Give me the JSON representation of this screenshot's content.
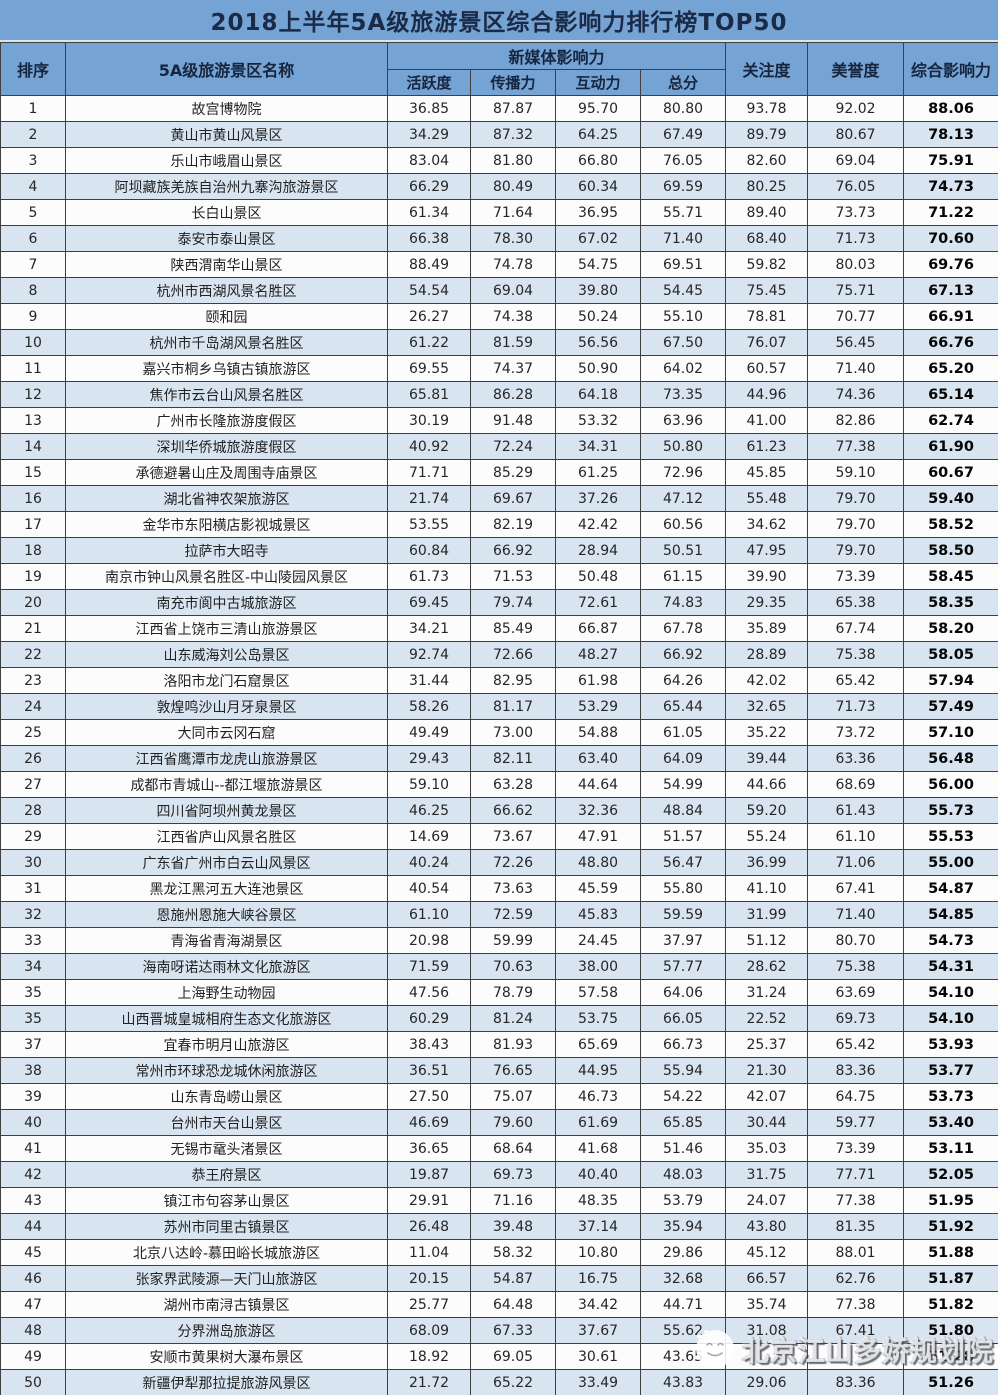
{
  "title": "2018上半年5A级旅游景区综合影响力排行榜TOP50",
  "header": {
    "rank": "排序",
    "name": "5A级旅游景区名称",
    "new_media": "新媒体影响力",
    "activity": "活跃度",
    "spread": "传播力",
    "interaction": "互动力",
    "subtotal": "总分",
    "attention": "关注度",
    "reputation": "美誉度",
    "overall": "综合影响力"
  },
  "colors": {
    "header_blue": "#75a3d3",
    "row_alt_blue": "#d9e4f1",
    "row_white": "#fcfcfd",
    "border_dark": "#3f3f3f"
  },
  "watermark": {
    "text": "北京江山多娇规划院"
  },
  "table": {
    "rows": [
      [
        "1",
        "故宫博物院",
        "36.85",
        "87.87",
        "95.70",
        "80.80",
        "93.78",
        "92.02",
        "88.06"
      ],
      [
        "2",
        "黄山市黄山风景区",
        "34.29",
        "87.32",
        "64.25",
        "67.49",
        "89.79",
        "80.67",
        "78.13"
      ],
      [
        "3",
        "乐山市峨眉山景区",
        "83.04",
        "81.80",
        "66.80",
        "76.05",
        "82.60",
        "69.04",
        "75.91"
      ],
      [
        "4",
        "阿坝藏族羌族自治州九寨沟旅游景区",
        "66.29",
        "80.49",
        "60.34",
        "69.59",
        "80.25",
        "76.05",
        "74.73"
      ],
      [
        "5",
        "长白山景区",
        "61.34",
        "71.64",
        "36.95",
        "55.71",
        "89.40",
        "73.73",
        "71.22"
      ],
      [
        "6",
        "泰安市泰山景区",
        "66.38",
        "78.30",
        "67.02",
        "71.40",
        "68.40",
        "71.73",
        "70.60"
      ],
      [
        "7",
        "陕西渭南华山景区",
        "88.49",
        "74.78",
        "54.75",
        "69.51",
        "59.82",
        "80.03",
        "69.76"
      ],
      [
        "8",
        "杭州市西湖风景名胜区",
        "54.54",
        "69.04",
        "39.80",
        "54.45",
        "75.45",
        "75.71",
        "67.13"
      ],
      [
        "9",
        "颐和园",
        "26.27",
        "74.38",
        "50.24",
        "55.10",
        "78.81",
        "70.77",
        "66.91"
      ],
      [
        "10",
        "杭州市千岛湖风景名胜区",
        "61.22",
        "81.59",
        "56.56",
        "67.50",
        "76.07",
        "56.45",
        "66.76"
      ],
      [
        "11",
        "嘉兴市桐乡乌镇古镇旅游区",
        "69.55",
        "74.37",
        "50.90",
        "64.02",
        "60.57",
        "71.40",
        "65.20"
      ],
      [
        "12",
        "焦作市云台山风景名胜区",
        "65.81",
        "86.28",
        "64.18",
        "73.35",
        "44.96",
        "74.36",
        "65.14"
      ],
      [
        "13",
        "广州市长隆旅游度假区",
        "30.19",
        "91.48",
        "53.32",
        "63.96",
        "41.00",
        "82.86",
        "62.74"
      ],
      [
        "14",
        "深圳华侨城旅游度假区",
        "40.92",
        "72.24",
        "34.31",
        "50.80",
        "61.23",
        "77.38",
        "61.90"
      ],
      [
        "15",
        "承德避暑山庄及周围寺庙景区",
        "71.71",
        "85.29",
        "61.25",
        "72.96",
        "45.85",
        "59.10",
        "60.67"
      ],
      [
        "16",
        "湖北省神农架旅游区",
        "21.74",
        "69.67",
        "37.26",
        "47.12",
        "55.48",
        "79.70",
        "59.40"
      ],
      [
        "17",
        "金华市东阳横店影视城景区",
        "53.55",
        "82.19",
        "42.42",
        "60.56",
        "34.62",
        "79.70",
        "58.52"
      ],
      [
        "18",
        "拉萨市大昭寺",
        "60.84",
        "66.92",
        "28.94",
        "50.51",
        "47.95",
        "79.70",
        "58.50"
      ],
      [
        "19",
        "南京市钟山风景名胜区-中山陵园风景区",
        "61.73",
        "71.53",
        "50.48",
        "61.15",
        "39.90",
        "73.39",
        "58.45"
      ],
      [
        "20",
        "南充市阆中古城旅游区",
        "69.45",
        "79.74",
        "72.61",
        "74.83",
        "29.35",
        "65.38",
        "58.35"
      ],
      [
        "21",
        "江西省上饶市三清山旅游景区",
        "34.21",
        "85.49",
        "66.87",
        "67.78",
        "35.89",
        "67.74",
        "58.20"
      ],
      [
        "22",
        "山东威海刘公岛景区",
        "92.74",
        "72.66",
        "48.27",
        "66.92",
        "28.89",
        "75.38",
        "58.05"
      ],
      [
        "23",
        "洛阳市龙门石窟景区",
        "31.44",
        "82.95",
        "61.98",
        "64.26",
        "42.02",
        "65.42",
        "57.94"
      ],
      [
        "24",
        "敦煌鸣沙山月牙泉景区",
        "58.26",
        "81.17",
        "53.29",
        "65.44",
        "32.65",
        "71.73",
        "57.49"
      ],
      [
        "25",
        "大同市云冈石窟",
        "49.49",
        "73.00",
        "54.88",
        "61.05",
        "35.22",
        "73.72",
        "57.10"
      ],
      [
        "26",
        "江西省鹰潭市龙虎山旅游景区",
        "29.43",
        "82.11",
        "63.40",
        "64.09",
        "39.44",
        "63.36",
        "56.48"
      ],
      [
        "27",
        "成都市青城山--都江堰旅游景区",
        "59.10",
        "63.28",
        "44.64",
        "54.99",
        "44.66",
        "68.69",
        "56.00"
      ],
      [
        "28",
        "四川省阿坝州黄龙景区",
        "46.25",
        "66.62",
        "32.36",
        "48.84",
        "59.20",
        "61.43",
        "55.73"
      ],
      [
        "29",
        "江西省庐山风景名胜区",
        "14.69",
        "73.67",
        "47.91",
        "51.57",
        "55.24",
        "61.10",
        "55.53"
      ],
      [
        "30",
        "广东省广州市白云山风景区",
        "40.24",
        "72.26",
        "48.80",
        "56.47",
        "36.99",
        "71.06",
        "55.00"
      ],
      [
        "31",
        "黑龙江黑河五大连池景区",
        "40.54",
        "73.63",
        "45.59",
        "55.80",
        "41.10",
        "67.41",
        "54.87"
      ],
      [
        "32",
        "恩施州恩施大峡谷景区",
        "61.10",
        "72.59",
        "45.83",
        "59.59",
        "31.99",
        "71.40",
        "54.85"
      ],
      [
        "33",
        "青海省青海湖景区",
        "20.98",
        "59.99",
        "24.45",
        "37.97",
        "51.12",
        "80.70",
        "54.73"
      ],
      [
        "34",
        "海南呀诺达雨林文化旅游区",
        "71.59",
        "70.63",
        "38.00",
        "57.77",
        "28.62",
        "75.38",
        "54.31"
      ],
      [
        "35",
        "上海野生动物园",
        "47.56",
        "78.79",
        "57.58",
        "64.06",
        "31.24",
        "63.69",
        "54.10"
      ],
      [
        "35",
        "山西晋城皇城相府生态文化旅游区",
        "60.29",
        "81.24",
        "53.75",
        "66.05",
        "22.52",
        "69.73",
        "54.10"
      ],
      [
        "37",
        "宜春市明月山旅游区",
        "38.43",
        "81.93",
        "65.69",
        "66.73",
        "25.37",
        "65.42",
        "53.93"
      ],
      [
        "38",
        "常州市环球恐龙城休闲旅游区",
        "36.51",
        "76.65",
        "44.95",
        "55.94",
        "21.30",
        "83.36",
        "53.77"
      ],
      [
        "39",
        "山东青岛崂山景区",
        "27.50",
        "75.07",
        "46.73",
        "54.22",
        "42.07",
        "64.75",
        "53.73"
      ],
      [
        "40",
        "台州市天台山景区",
        "46.69",
        "79.60",
        "61.69",
        "65.85",
        "30.44",
        "59.77",
        "53.40"
      ],
      [
        "41",
        "无锡市鼋头渚景区",
        "36.65",
        "68.64",
        "41.68",
        "51.46",
        "35.03",
        "73.39",
        "53.11"
      ],
      [
        "42",
        "恭王府景区",
        "19.87",
        "69.73",
        "40.40",
        "48.03",
        "31.75",
        "77.71",
        "52.05"
      ],
      [
        "43",
        "镇江市句容茅山景区",
        "29.91",
        "71.16",
        "48.35",
        "53.79",
        "24.07",
        "77.38",
        "51.95"
      ],
      [
        "44",
        "苏州市同里古镇景区",
        "26.48",
        "39.48",
        "37.14",
        "35.94",
        "43.80",
        "81.35",
        "51.92"
      ],
      [
        "45",
        "北京八达岭-慕田峪长城旅游区",
        "11.04",
        "58.32",
        "10.80",
        "29.86",
        "45.12",
        "88.01",
        "51.88"
      ],
      [
        "46",
        "张家界武陵源—天门山旅游区",
        "20.15",
        "54.87",
        "16.75",
        "32.68",
        "66.57",
        "62.76",
        "51.87"
      ],
      [
        "47",
        "湖州市南浔古镇景区",
        "25.77",
        "64.48",
        "34.42",
        "44.71",
        "35.74",
        "77.38",
        "51.82"
      ],
      [
        "48",
        "分界洲岛旅游区",
        "68.09",
        "67.33",
        "37.67",
        "55.62",
        "31.08",
        "67.41",
        "51.80"
      ],
      [
        "49",
        "安顺市黄果树大瀑布景区",
        "18.92",
        "69.05",
        "30.61",
        "43.65",
        "",
        "",
        "51.28"
      ],
      [
        "50",
        "新疆伊犁那拉提旅游风景区",
        "21.72",
        "65.22",
        "33.49",
        "43.83",
        "29.06",
        "83.36",
        "51.26"
      ]
    ]
  }
}
